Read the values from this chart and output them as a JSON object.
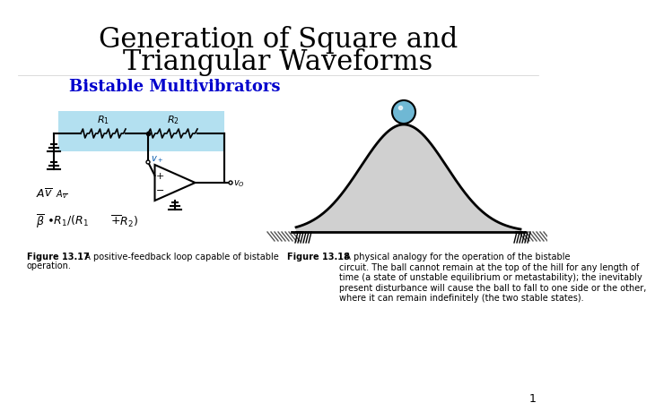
{
  "title_line1": "Generation of Square and",
  "title_line2": "Triangular Waveforms",
  "subtitle": "Bistable Multivibrators",
  "fig13_17_caption": "Figure 13.17  A positive-feedback loop capable of bistable\noperation.",
  "fig13_18_caption": "Figure 13.18  A physical analogy for the operation of the bistable\ncircuit. The ball cannot remain at the top of the hill for any length of\ntime (a state of unstable equilibrium or metastability); the inevitably\npresent disturbance will cause the ball to fall to one side or the other,\nwhere it can remain indefinitely (the two stable states).",
  "background": "#ffffff",
  "title_color": "#000000",
  "subtitle_color": "#0000cc",
  "caption_bold": "Figure 13.17",
  "caption_bold2": "Figure 13.18",
  "page_number": "1",
  "resistor_bg": "#b3e0f0",
  "hill_fill": "#c8c8c8",
  "ball_color": "#6fb8d4",
  "ground_hatch": "#555555"
}
